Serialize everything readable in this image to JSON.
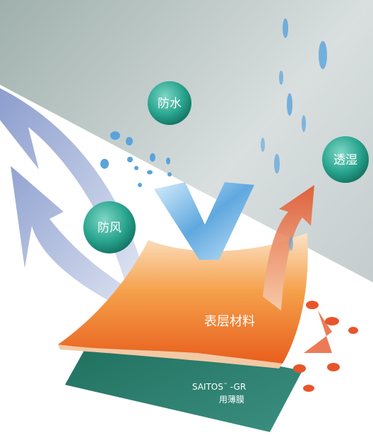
{
  "labels": {
    "waterproof": "防水",
    "breathable": "透湿",
    "windproof": "防风",
    "surface": "表层材料",
    "membrane_name": "SAITOS",
    "membrane_tm": "™",
    "membrane_suffix": " -GR",
    "membrane_type": "用薄膜"
  }
}
